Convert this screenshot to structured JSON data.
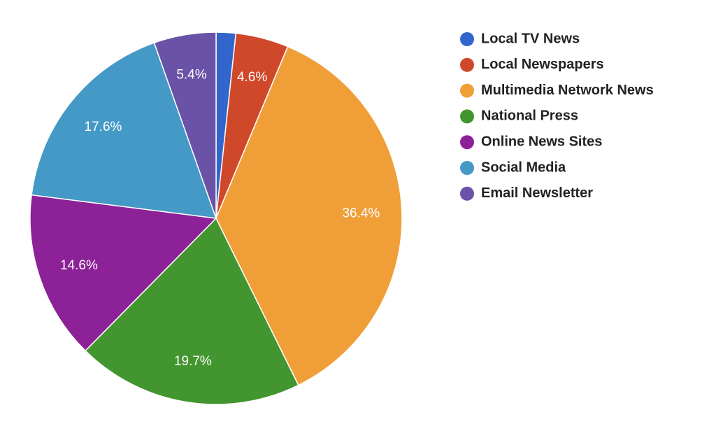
{
  "chart_data": {
    "type": "pie",
    "categories": [
      "Local TV News",
      "Local Newspapers",
      "Multimedia Network News",
      "National Press",
      "Online News Sites",
      "Social Media",
      "Email Newsletter"
    ],
    "values": [
      1.7,
      4.6,
      36.4,
      19.7,
      14.6,
      17.6,
      5.4
    ],
    "value_labels": [
      null,
      "4.6%",
      "36.4%",
      "19.7%",
      "14.6%",
      "17.6%",
      "5.4%"
    ],
    "colors": [
      "#3366cc",
      "#d0482a",
      "#f09f38",
      "#43962f",
      "#8c2198",
      "#4499c6",
      "#6a52a7"
    ],
    "legend": "right"
  }
}
